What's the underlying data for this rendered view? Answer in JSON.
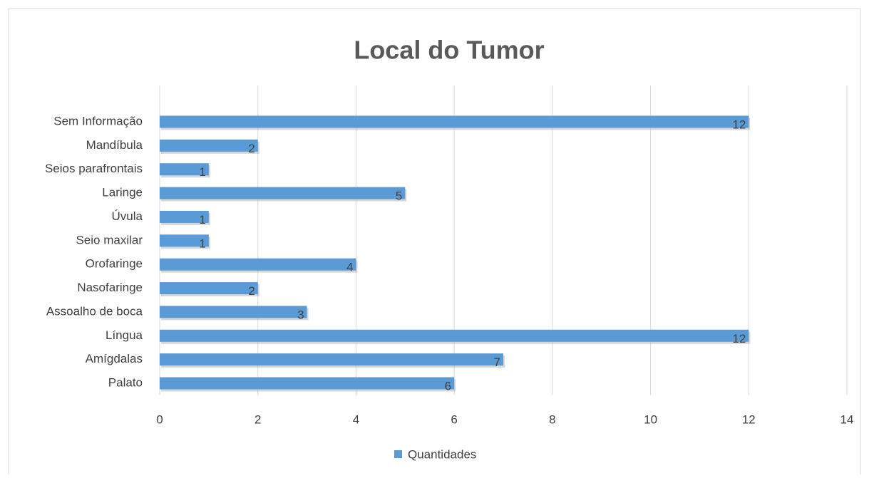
{
  "chart_data": {
    "type": "bar",
    "orientation": "horizontal",
    "title": "Local do Tumor",
    "categories": [
      "Palato",
      "Amígdalas",
      "Língua",
      "Assoalho de boca",
      "Nasofaringe",
      "Orofaringe",
      "Seio maxilar",
      "Úvula",
      "Laringe",
      "Seios parafrontais",
      "Mandíbula",
      "Sem Informação"
    ],
    "series": [
      {
        "name": "Quantidades",
        "color": "#5b9bd5",
        "values": [
          6,
          7,
          12,
          3,
          2,
          4,
          1,
          1,
          5,
          1,
          2,
          12
        ]
      }
    ],
    "xlim": [
      0,
      14
    ],
    "xticks": [
      0,
      2,
      4,
      6,
      8,
      10,
      12,
      14
    ],
    "grid": true,
    "legend": "bottom",
    "data_labels": true
  }
}
